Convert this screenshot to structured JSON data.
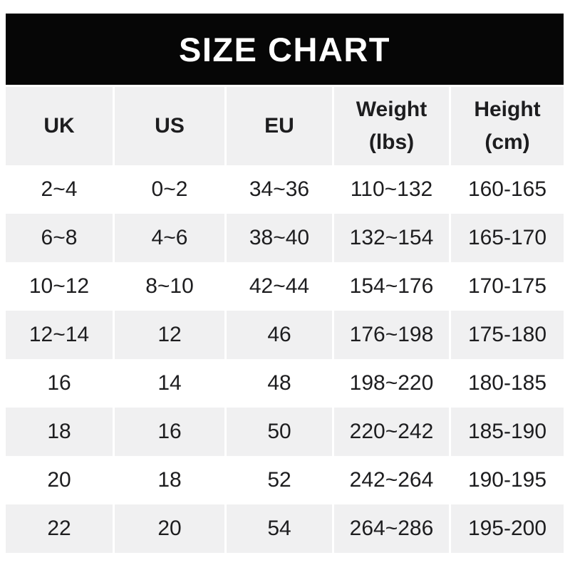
{
  "banner": {
    "title": "SIZE CHART",
    "background_color": "#060606",
    "text_color": "#ffffff"
  },
  "table": {
    "alt_row_color": "#f0f0f1",
    "text_color": "#1d1d1f",
    "headers": [
      {
        "line1": "UK",
        "line2": ""
      },
      {
        "line1": "US",
        "line2": ""
      },
      {
        "line1": "EU",
        "line2": ""
      },
      {
        "line1": "Weight",
        "line2": "(lbs)"
      },
      {
        "line1": "Height",
        "line2": "(cm)"
      }
    ]
  },
  "chart_data": {
    "type": "table",
    "title": "SIZE CHART",
    "columns": [
      "UK",
      "US",
      "EU",
      "Weight (lbs)",
      "Height (cm)"
    ],
    "rows": [
      [
        "2~4",
        "0~2",
        "34~36",
        "110~132",
        "160-165"
      ],
      [
        "6~8",
        "4~6",
        "38~40",
        "132~154",
        "165-170"
      ],
      [
        "10~12",
        "8~10",
        "42~44",
        "154~176",
        "170-175"
      ],
      [
        "12~14",
        "12",
        "46",
        "176~198",
        "175-180"
      ],
      [
        "16",
        "14",
        "48",
        "198~220",
        "180-185"
      ],
      [
        "18",
        "16",
        "50",
        "220~242",
        "185-190"
      ],
      [
        "20",
        "18",
        "52",
        "242~264",
        "190-195"
      ],
      [
        "22",
        "20",
        "54",
        "264~286",
        "195-200"
      ]
    ]
  }
}
